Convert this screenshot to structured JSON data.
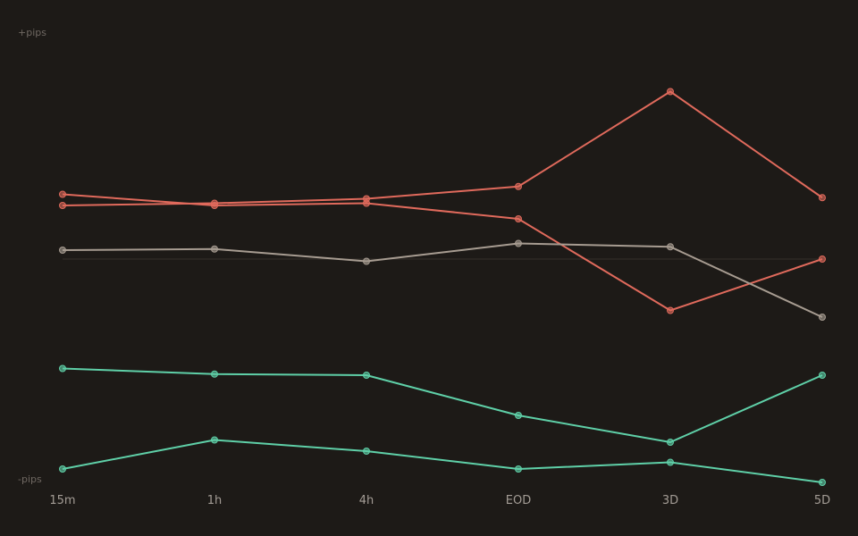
{
  "chart_data": {
    "type": "line",
    "categories": [
      "15m",
      "1h",
      "4h",
      "EOD",
      "3D",
      "5D"
    ],
    "y_top_label": "+pips",
    "y_bottom_label": "-pips",
    "ylim": [
      -100,
      100
    ],
    "zero_line": true,
    "grid": false,
    "legend": "none",
    "series": [
      {
        "color": "#e06a5c",
        "values": [
          24,
          25,
          27,
          32.5,
          75,
          27.5
        ]
      },
      {
        "color": "#e06a5c",
        "values": [
          29,
          24,
          25,
          18,
          -23,
          0
        ]
      },
      {
        "color": "#a79c91",
        "values": [
          4,
          4.5,
          -1,
          7,
          5.5,
          -26
        ]
      },
      {
        "color": "#5fd0a8",
        "values": [
          -49,
          -51.5,
          -52,
          -70,
          -82,
          -52
        ]
      },
      {
        "color": "#5fd0a8",
        "values": [
          -94,
          -81,
          -86,
          -94,
          -91,
          -100
        ]
      }
    ]
  }
}
